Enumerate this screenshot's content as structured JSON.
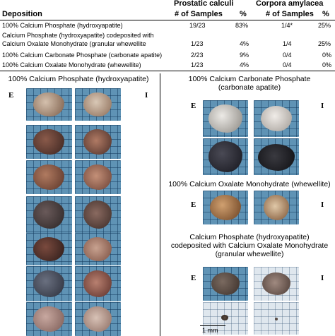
{
  "table": {
    "group_headers": {
      "prostatic": "Prostatic calculi",
      "corpora": "Corpora amylacea"
    },
    "col_headers": {
      "deposition": "Deposition",
      "samples1": "# of Samples",
      "pct1": "%",
      "samples2": "# of Samples",
      "pct2": "%"
    },
    "rows": [
      {
        "label": [
          "100% Calcium Phosphate (hydroxyapatite)"
        ],
        "pc_n": "19/23",
        "pc_pct": "83%",
        "ca_n": "1/4*",
        "ca_pct": "25%"
      },
      {
        "label": [
          "Calcium Phosphate (hydroxyapatite) codeposited with",
          "Calcium Oxalate Monohydrate (granular whewellite"
        ],
        "pc_n": "1/23",
        "pc_pct": "4%",
        "ca_n": "1/4",
        "ca_pct": "25%"
      },
      {
        "label": [
          "100% Calcium Carbonate Phosphate (carbonate apatite)"
        ],
        "pc_n": "2/23",
        "pc_pct": "9%",
        "ca_n": "0/4",
        "ca_pct": "0%"
      },
      {
        "label": [
          "100% Calcium Oxalate Monohydrate (whewellite)"
        ],
        "pc_n": "1/23",
        "pc_pct": "4%",
        "ca_n": "0/4",
        "ca_pct": "0%"
      }
    ]
  },
  "figure": {
    "left_title": "100% Calcium Phosphate (hydroxyapatite)",
    "right_titles": [
      [
        "100% Calcium Carbonate Phosphate",
        "(carbonate apatite)"
      ],
      [
        "100% Calcium Oxalate Monohydrate (whewellite)"
      ],
      [
        "Calcium Phosphate (hydroxyapatite)",
        "codeposited with Calcium Oxalate Monohydrate",
        "(granular whewellite)"
      ]
    ],
    "label_e": "E",
    "label_i": "I",
    "scale_bar": "1 mm"
  }
}
